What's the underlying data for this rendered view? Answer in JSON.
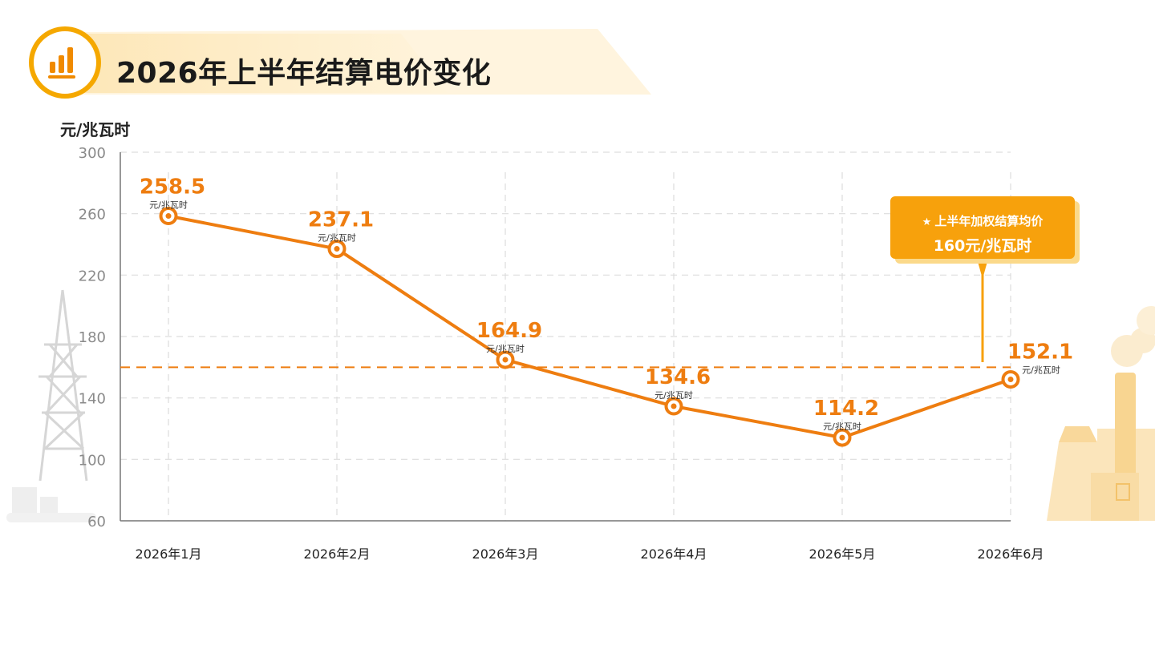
{
  "header": {
    "title": "2026年上半年结算电价变化"
  },
  "chart_data": {
    "type": "line",
    "title": "2026年上半年结算电价变化",
    "ylabel": "元/兆瓦时",
    "xlabel": "",
    "ylim": [
      60,
      300
    ],
    "yticks": [
      300,
      260,
      220,
      180,
      140,
      100,
      60
    ],
    "grid": true,
    "categories": [
      "2026年1月",
      "2026年2月",
      "2026年3月",
      "2026年4月",
      "2026年5月",
      "2026年6月"
    ],
    "series": [
      {
        "values": [
          258.5,
          237.1,
          164.9,
          134.6,
          114.2,
          152.1
        ],
        "point_unit": "元/兆瓦时"
      }
    ],
    "average_line": {
      "value": 160,
      "label_title": "上半年加权结算均价",
      "label_value": "160元/兆瓦时"
    }
  },
  "colors": {
    "line": "#ee7d10",
    "label": "#ee7d10",
    "callout": "#f7a10c",
    "grid": "#dddddd"
  },
  "icons": [
    "bar-chart-icon",
    "star-icon",
    "power-tower-icon",
    "factory-icon"
  ]
}
